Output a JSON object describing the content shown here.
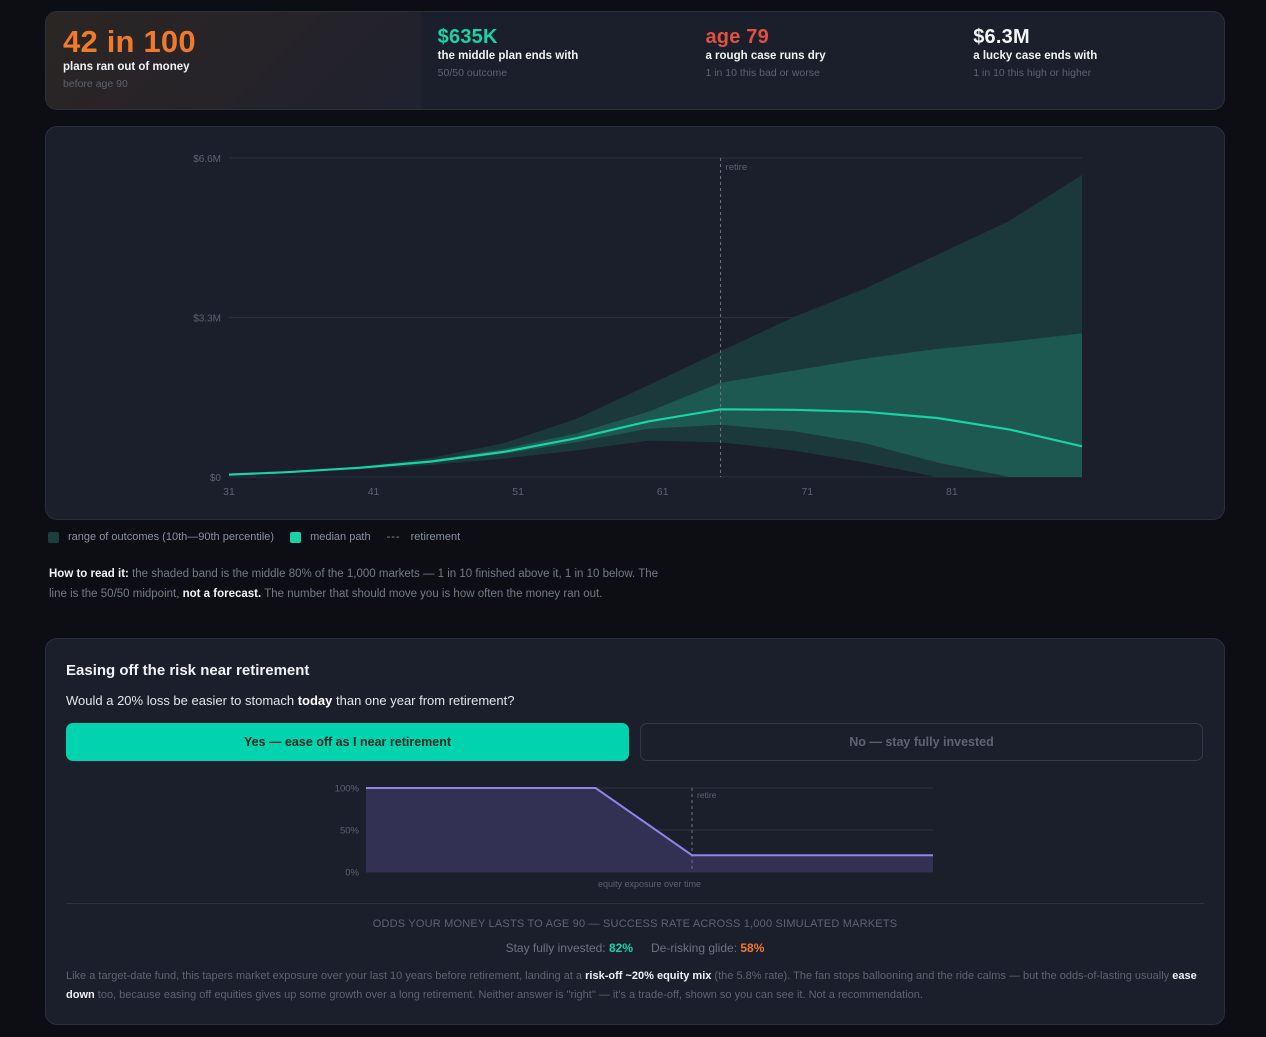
{
  "stats": [
    {
      "big": "42 in 100",
      "label": "plans ran out of money",
      "sub": "before age 90"
    },
    {
      "big": "$635K",
      "label": "the middle plan ends with",
      "sub": "50/50 outcome"
    },
    {
      "big": "age 79",
      "label": "a rough case runs dry",
      "sub": "1 in 10 this bad or worse"
    },
    {
      "big": "$6.3M",
      "label": "a lucky case ends with",
      "sub": "1 in 10 this high or higher"
    }
  ],
  "colors": {
    "accent": "#00d3ad",
    "warn": "#ef7a2c",
    "danger": "#e0513f",
    "glide": "#8f86e8"
  },
  "chart_data": [
    {
      "type": "area",
      "x_ticks": [
        "31",
        "41",
        "51",
        "61",
        "71",
        "81"
      ],
      "y_ticks": [
        "$0",
        "$3.3M",
        "$6.6M"
      ],
      "xlim": [
        31,
        90
      ],
      "ylim": [
        0,
        6.6
      ],
      "y_unit": "$M",
      "retire_age": 65,
      "retire_label": "retire",
      "ages": [
        31,
        35,
        40,
        45,
        50,
        55,
        60,
        65,
        70,
        75,
        80,
        85,
        90
      ],
      "series": [
        {
          "name": "range of outcomes (10th—90th percentile)",
          "band": "outer",
          "low": [
            0.05,
            0.09,
            0.16,
            0.25,
            0.38,
            0.55,
            0.75,
            0.72,
            0.55,
            0.3,
            0.0,
            0.0,
            0.0
          ],
          "high": [
            0.05,
            0.11,
            0.22,
            0.4,
            0.7,
            1.2,
            1.9,
            2.6,
            3.3,
            3.9,
            4.6,
            5.3,
            6.25
          ]
        },
        {
          "name": "inner",
          "band": "inner",
          "low": [
            0.05,
            0.1,
            0.18,
            0.3,
            0.48,
            0.72,
            1.0,
            1.08,
            0.95,
            0.7,
            0.3,
            0.0,
            0.0
          ],
          "high": [
            0.05,
            0.1,
            0.2,
            0.35,
            0.58,
            0.9,
            1.35,
            1.95,
            2.2,
            2.45,
            2.65,
            2.8,
            2.97
          ]
        },
        {
          "name": "median path",
          "line": true,
          "values": [
            0.05,
            0.1,
            0.19,
            0.32,
            0.52,
            0.8,
            1.15,
            1.4,
            1.39,
            1.35,
            1.22,
            0.98,
            0.635
          ]
        }
      ],
      "legend": [
        {
          "label": "range of outcomes (10th—90th percentile)",
          "color": "#1c3e3c"
        },
        {
          "label": "median path",
          "color": "#19d3a6"
        },
        {
          "label": "retirement",
          "color": "#8a90a0"
        }
      ]
    },
    {
      "type": "area",
      "ylabel_ticks": [
        "100%",
        "50%",
        "0%"
      ],
      "xlabel": "equity exposure over time",
      "retire_label": "retire",
      "xlim": [
        0,
        100
      ],
      "ylim": [
        0,
        100
      ],
      "x": [
        0,
        40.5,
        57.5,
        100
      ],
      "values": [
        100,
        100,
        20,
        20
      ],
      "retire_x": 57.5
    }
  ],
  "legend_dash": "---",
  "howto": {
    "lead": "How to read it:",
    "t1": " the shaded band is the middle 80% of the 1,000 markets — 1 in 10 finished above it, 1 in 10 below. The line is the 50/50 midpoint, ",
    "b2": "not a forecast.",
    "t2": " The number that should move you is how often the money ran out."
  },
  "ease": {
    "title": "Easing off the risk near retirement",
    "q1": "Would a 20% loss be easier to stomach ",
    "qb": "today",
    "q2": " than one year from retirement?",
    "yes_label": "Yes — ease off as I near retirement",
    "no_label": "No — stay fully invested",
    "odds_heading": "ODDS YOUR MONEY LASTS TO AGE 90 — SUCCESS RATE ACROSS 1,000 SIMULATED MARKETS",
    "odds1_label": "Stay fully invested: ",
    "odds1_value": "82%",
    "odds2_label": "De-risking glide: ",
    "odds2_value": "58%",
    "note": {
      "t1": "Like a target-date fund, this tapers market exposure over your last 10 years before retirement, landing at a ",
      "b1": "risk-off ~20% equity mix",
      "t2": " (the 5.8% rate). The fan stops ballooning and the ride calms — but the odds-of-lasting usually ",
      "b2": "ease down",
      "t3": " too, because easing off equities gives up some growth over a long retirement. Neither answer is \"right\" — it's a trade-off, shown so you can see it. Not a recommendation."
    }
  }
}
